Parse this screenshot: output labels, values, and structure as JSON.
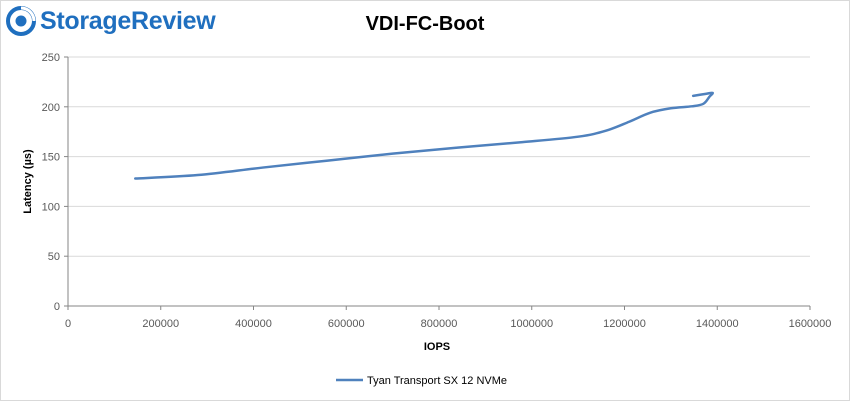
{
  "brand": {
    "name": "StorageReview",
    "logo_icon": "storagereview-logo-icon",
    "color": "#1f6fbf"
  },
  "chart_data": {
    "type": "line",
    "title": "VDI-FC-Boot",
    "xlabel": "IOPS",
    "ylabel": "Latency (µs)",
    "xlim": [
      0,
      1600000
    ],
    "ylim": [
      0,
      250
    ],
    "x_ticks": [
      0,
      200000,
      400000,
      600000,
      800000,
      1000000,
      1200000,
      1400000,
      1600000
    ],
    "y_ticks": [
      0,
      50,
      100,
      150,
      200,
      250
    ],
    "grid": "horizontal",
    "legend": "bottom",
    "series": [
      {
        "name": "Tyan Transport SX 12 NVMe",
        "color": "#4f81bd",
        "points": [
          [
            145000,
            128
          ],
          [
            280000,
            131.5
          ],
          [
            420000,
            139
          ],
          [
            560000,
            146
          ],
          [
            700000,
            153
          ],
          [
            840000,
            159
          ],
          [
            980000,
            164.5
          ],
          [
            1100000,
            170
          ],
          [
            1160000,
            176
          ],
          [
            1210000,
            185
          ],
          [
            1255000,
            194
          ],
          [
            1300000,
            198.5
          ],
          [
            1345000,
            200.5
          ],
          [
            1370000,
            203
          ],
          [
            1383000,
            210
          ],
          [
            1390000,
            214
          ],
          [
            1375000,
            213
          ],
          [
            1348000,
            211
          ]
        ]
      }
    ]
  }
}
